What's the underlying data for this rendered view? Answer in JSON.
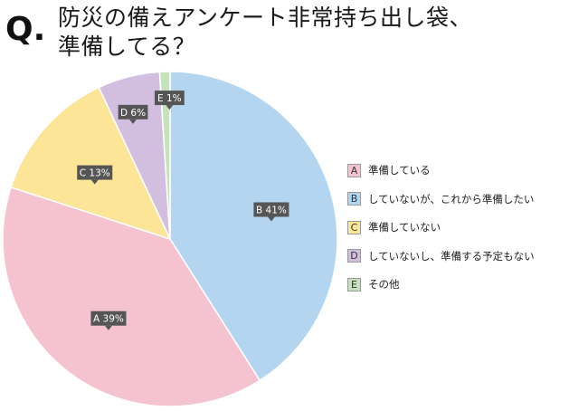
{
  "header": {
    "q_label": "Q.",
    "title_line1": "防災の備えアンケート非常持ち出し袋、",
    "title_line2": "準備してる？"
  },
  "chart_data": {
    "type": "pie",
    "slices": [
      {
        "id": "A",
        "label": "準備している",
        "value": 39,
        "data_label": "A 39%",
        "color": "#f5c2d0"
      },
      {
        "id": "B",
        "label": "していないが、これから準備したい",
        "value": 41,
        "data_label": "B 41%",
        "color": "#b3d5f0"
      },
      {
        "id": "C",
        "label": "準備していない",
        "value": 13,
        "data_label": "C 13%",
        "color": "#fde597"
      },
      {
        "id": "D",
        "label": "していないし、準備する予定もない",
        "value": 6,
        "data_label": "D 6%",
        "color": "#d2bfe0"
      },
      {
        "id": "E",
        "label": "その他",
        "value": 1,
        "data_label": "E 1%",
        "color": "#c6e2bd"
      }
    ],
    "legend_position": "right",
    "start": "top",
    "direction": "clockwise-from-B"
  }
}
